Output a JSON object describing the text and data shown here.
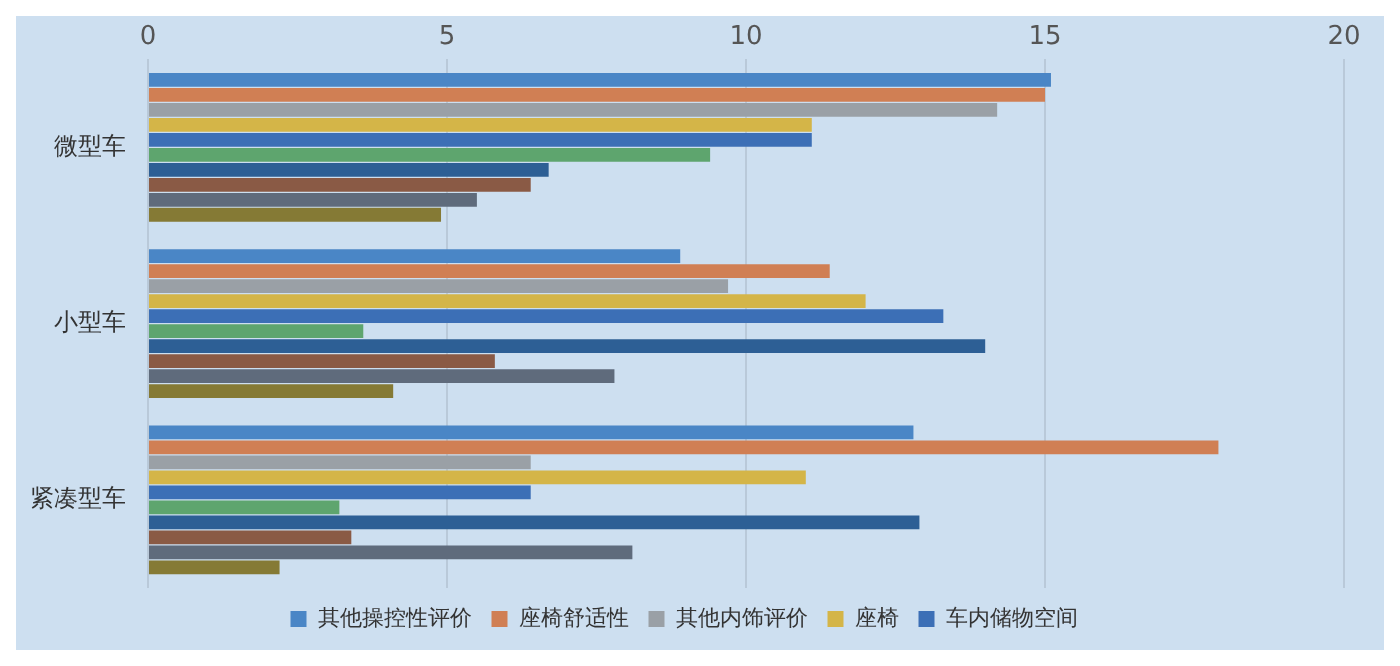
{
  "chart_data": {
    "type": "bar",
    "orientation": "horizontal",
    "categories": [
      "微型车",
      "小型车",
      "紧凑型车"
    ],
    "series": [
      {
        "name": "其他操控性评价",
        "color": "#4a86c6",
        "values": [
          15.1,
          8.9,
          12.8
        ]
      },
      {
        "name": "座椅舒适性",
        "color": "#d07f54",
        "values": [
          15.0,
          11.4,
          17.9
        ]
      },
      {
        "name": "其他内饰评价",
        "color": "#9aa0a6",
        "values": [
          14.2,
          9.7,
          6.4
        ]
      },
      {
        "name": "座椅",
        "color": "#d4b548",
        "values": [
          11.1,
          12.0,
          11.0
        ]
      },
      {
        "name": "车内储物空间",
        "color": "#3c6fb6",
        "values": [
          11.1,
          13.3,
          6.4
        ]
      },
      {
        "color": "#5ea56e",
        "values": [
          9.4,
          3.6,
          3.2
        ]
      },
      {
        "color": "#2d5f95",
        "values": [
          6.7,
          14.0,
          12.9
        ]
      },
      {
        "color": "#8a5a45",
        "values": [
          6.4,
          5.8,
          3.4
        ]
      },
      {
        "color": "#5f6b7c",
        "values": [
          5.5,
          7.8,
          8.1
        ]
      },
      {
        "color": "#857a35",
        "values": [
          4.9,
          4.1,
          2.2
        ]
      }
    ],
    "xlim": [
      0,
      20
    ],
    "xticks": [
      0,
      5,
      10,
      15,
      20
    ],
    "grid": "x",
    "legend": "bottom"
  }
}
